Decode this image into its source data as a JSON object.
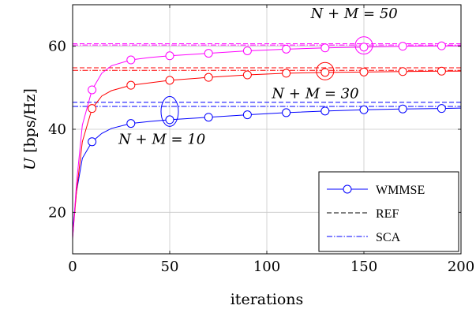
{
  "chart_data": {
    "type": "line",
    "title": "",
    "xlabel": "iterations",
    "ylabel": "U [bps/Hz]",
    "xlim": [
      0,
      200
    ],
    "ylim": [
      10,
      70
    ],
    "xticks": [
      "0",
      "50",
      "100",
      "150",
      "200"
    ],
    "yticks": [
      "20",
      "40",
      "60"
    ],
    "grid": true,
    "legend_position": "bottom-right",
    "legend": [
      {
        "label": "WMMSE",
        "style": "solid-circle"
      },
      {
        "label": "REF",
        "style": "dashed"
      },
      {
        "label": "SCA",
        "style": "dashdot"
      }
    ],
    "groups": [
      {
        "label": "N + M = 10",
        "color": "#0000ff",
        "wmmse_curve": {
          "x": [
            0,
            2,
            5,
            10,
            15,
            20,
            30,
            40,
            50,
            70,
            90,
            110,
            130,
            150,
            170,
            190,
            200
          ],
          "y": [
            15.5,
            25,
            33,
            37,
            39,
            40.2,
            41.4,
            41.9,
            42.3,
            42.9,
            43.5,
            44.0,
            44.4,
            44.7,
            44.9,
            45.0,
            45.1
          ]
        },
        "wmmse_markers": {
          "x": [
            10,
            30,
            50,
            70,
            90,
            110,
            130,
            150,
            170,
            190
          ],
          "y": [
            37,
            41.4,
            42.3,
            42.9,
            43.5,
            44.0,
            44.4,
            44.7,
            44.9,
            45.0
          ]
        },
        "ref": 46.5,
        "sca": 45.5
      },
      {
        "label": "N + M = 30",
        "color": "#ff0000",
        "wmmse_curve": {
          "x": [
            0,
            2,
            5,
            10,
            15,
            20,
            30,
            40,
            50,
            70,
            90,
            110,
            130,
            150,
            170,
            190,
            200
          ],
          "y": [
            14,
            25,
            37,
            45,
            48,
            49.3,
            50.6,
            51.2,
            51.8,
            52.5,
            53.1,
            53.5,
            53.7,
            53.8,
            53.9,
            54.0,
            54.0
          ]
        },
        "wmmse_markers": {
          "x": [
            10,
            30,
            50,
            70,
            90,
            110,
            130,
            150,
            170,
            190
          ],
          "y": [
            45,
            50.6,
            51.8,
            52.5,
            53.1,
            53.5,
            53.7,
            53.8,
            53.9,
            54.0
          ]
        },
        "ref": 54.8,
        "sca": 54.2
      },
      {
        "label": "N + M = 50",
        "color": "#ff00ff",
        "wmmse_curve": {
          "x": [
            0,
            2,
            5,
            10,
            15,
            20,
            30,
            40,
            50,
            70,
            90,
            110,
            130,
            150,
            170,
            190,
            200
          ],
          "y": [
            13.5,
            27,
            41,
            49.5,
            53.5,
            55.3,
            56.7,
            57.3,
            57.7,
            58.3,
            58.9,
            59.3,
            59.6,
            59.8,
            60.0,
            60.1,
            60.1
          ]
        },
        "wmmse_markers": {
          "x": [
            10,
            30,
            50,
            70,
            90,
            110,
            130,
            150,
            170,
            190
          ],
          "y": [
            49.5,
            56.7,
            57.7,
            58.3,
            58.9,
            59.3,
            59.6,
            59.8,
            60.0,
            60.1
          ]
        },
        "ref": 60.6,
        "sca": 60.3
      }
    ],
    "annotations": [
      {
        "text": "N + M = 10",
        "x": 46,
        "y": 36.5,
        "group": 0
      },
      {
        "text": "N + M = 30",
        "x": 125,
        "y": 47.5,
        "group": 1
      },
      {
        "text": "N + M = 50",
        "x": 145,
        "y": 66.8,
        "group": 2
      }
    ],
    "highlight_ellipses": [
      {
        "x": 50,
        "y": 44.3,
        "group": 0
      },
      {
        "x": 130,
        "y": 54.0,
        "group": 1
      },
      {
        "x": 150,
        "y": 60.2,
        "group": 2
      }
    ]
  }
}
